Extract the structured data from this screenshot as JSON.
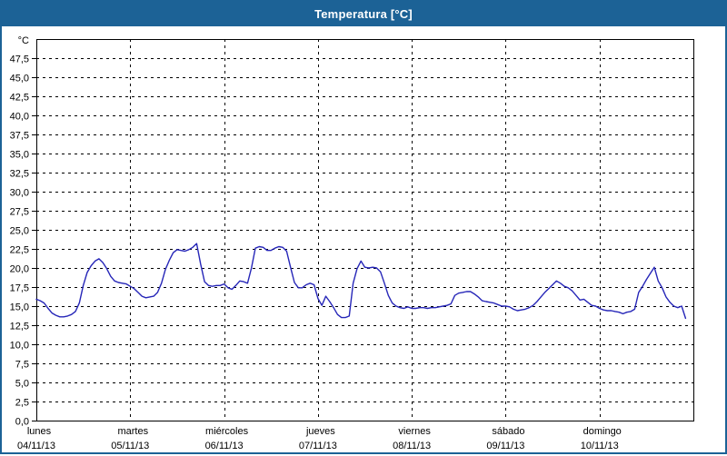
{
  "window": {
    "title": "Temperatura [°C]",
    "titlebar_color": "#1C6296",
    "border_color": "#1C6296"
  },
  "chart": {
    "unit_label": "°C",
    "y_tick_labels": [
      "47,5",
      "45,0",
      "42,5",
      "40,0",
      "37,5",
      "35,0",
      "32,5",
      "30,0",
      "27,5",
      "25,0",
      "22,5",
      "20,0",
      "17,5",
      "15,0",
      "12,5",
      "10,0",
      "7,5",
      "5,0",
      "2,5",
      "0,0"
    ],
    "x_labels": [
      {
        "day": "lunes",
        "date": "04/11/13"
      },
      {
        "day": "martes",
        "date": "05/11/13"
      },
      {
        "day": "miércoles",
        "date": "06/11/13"
      },
      {
        "day": "jueves",
        "date": "07/11/13"
      },
      {
        "day": "viernes",
        "date": "08/11/13"
      },
      {
        "day": "sábado",
        "date": "09/11/13"
      },
      {
        "day": "domingo",
        "date": "10/11/13"
      }
    ],
    "line_color": "#2626B8",
    "grid_color": "#000000"
  },
  "chart_data": {
    "type": "line",
    "title": "Temperatura [°C]",
    "ylabel": "°C",
    "ylim": [
      0,
      50
    ],
    "y_tick_step": 2.5,
    "grid": "dashed",
    "x_unit": "hours from 04/11/13 00:00",
    "x_range_hours": [
      0,
      168
    ],
    "categories_days": [
      "lunes 04/11/13",
      "martes 05/11/13",
      "miércoles 06/11/13",
      "jueves 07/11/13",
      "viernes 08/11/13",
      "sábado 09/11/13",
      "domingo 10/11/13"
    ],
    "series": [
      {
        "name": "Temperatura",
        "unit": "°C",
        "sampling": "hourly",
        "values": [
          15.9,
          15.7,
          15.4,
          14.7,
          14.1,
          13.8,
          13.6,
          13.6,
          13.7,
          13.9,
          14.3,
          15.4,
          17.7,
          19.4,
          20.3,
          20.9,
          21.2,
          20.7,
          19.9,
          18.9,
          18.3,
          18.1,
          18.0,
          17.9,
          17.6,
          17.3,
          16.8,
          16.3,
          16.1,
          16.2,
          16.3,
          16.8,
          18.0,
          19.8,
          21.0,
          22.0,
          22.4,
          22.3,
          22.2,
          22.4,
          22.7,
          23.2,
          20.5,
          18.2,
          17.7,
          17.6,
          17.7,
          17.7,
          17.9,
          17.4,
          17.2,
          17.7,
          18.3,
          18.2,
          18.0,
          20.0,
          22.6,
          22.8,
          22.7,
          22.3,
          22.3,
          22.6,
          22.8,
          22.7,
          22.2,
          20.1,
          18.1,
          17.4,
          17.4,
          17.8,
          18.0,
          17.8,
          16.0,
          15.1,
          16.3,
          15.6,
          14.8,
          13.9,
          13.5,
          13.5,
          13.7,
          18.0,
          19.9,
          20.9,
          20.1,
          20.0,
          20.1,
          20.0,
          19.5,
          18.0,
          16.4,
          15.4,
          15.0,
          14.8,
          14.7,
          14.9,
          14.7,
          14.7,
          14.8,
          14.8,
          14.7,
          14.8,
          14.8,
          14.9,
          15.0,
          15.1,
          15.3,
          16.4,
          16.7,
          16.8,
          16.9,
          16.9,
          16.6,
          16.2,
          15.7,
          15.6,
          15.5,
          15.4,
          15.2,
          15.0,
          15.0,
          14.9,
          14.6,
          14.4,
          14.5,
          14.6,
          14.8,
          15.1,
          15.6,
          16.2,
          16.8,
          17.3,
          17.8,
          18.3,
          18.0,
          17.6,
          17.4,
          17.0,
          16.4,
          15.8,
          15.9,
          15.5,
          15.1,
          15.0,
          14.7,
          14.5,
          14.4,
          14.4,
          14.3,
          14.2,
          14.0,
          14.2,
          14.3,
          14.6,
          16.8,
          17.6,
          18.5,
          19.3,
          20.1,
          18.3,
          17.4,
          16.2,
          15.5,
          15.0,
          14.8,
          15.0,
          13.4
        ]
      }
    ]
  }
}
